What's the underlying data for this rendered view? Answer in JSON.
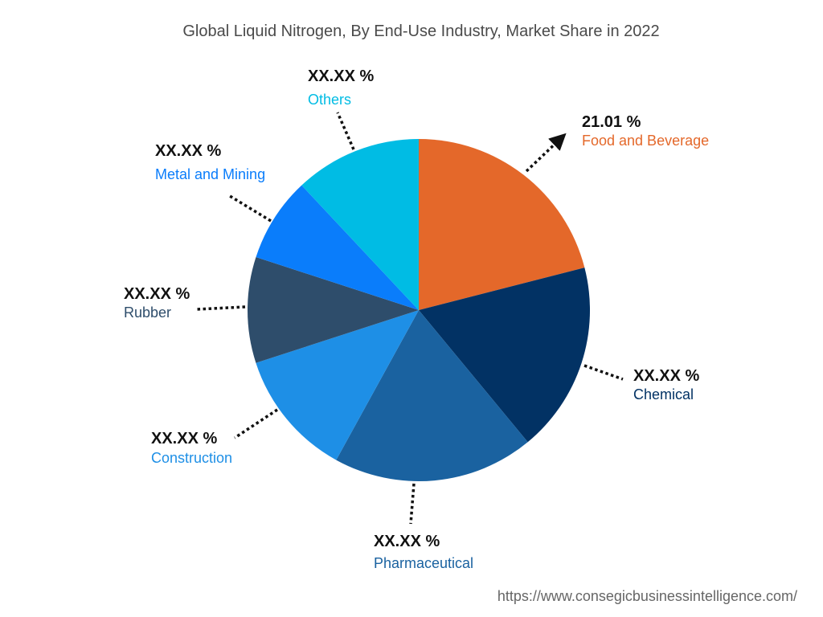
{
  "chart_data": {
    "type": "pie",
    "title": "Global Liquid Nitrogen, By End-Use Industry, Market Share in 2022",
    "slices": [
      {
        "label": "Food and Beverage",
        "value": 21.01,
        "display": "21.01 %",
        "color": "#E4682A"
      },
      {
        "label": "Chemical",
        "value": 18,
        "display": "XX.XX %",
        "color": "#023264"
      },
      {
        "label": "Pharmaceutical",
        "value": 19,
        "display": "XX.XX %",
        "color": "#1A62A0"
      },
      {
        "label": "Construction",
        "value": 12,
        "display": "XX.XX %",
        "color": "#1E8FE6"
      },
      {
        "label": "Rubber",
        "value": 10,
        "display": "XX.XX %",
        "color": "#2E4D6B"
      },
      {
        "label": "Metal and Mining",
        "value": 8,
        "display": "XX.XX %",
        "color": "#0A7DFB"
      },
      {
        "label": "Others",
        "value": 11.99,
        "display": "XX.XX %",
        "color": "#00BCE4"
      }
    ],
    "start_angle": "12 o'clock",
    "direction": "clockwise"
  },
  "source_url": "https://www.consegicbusinessintelligence.com/"
}
